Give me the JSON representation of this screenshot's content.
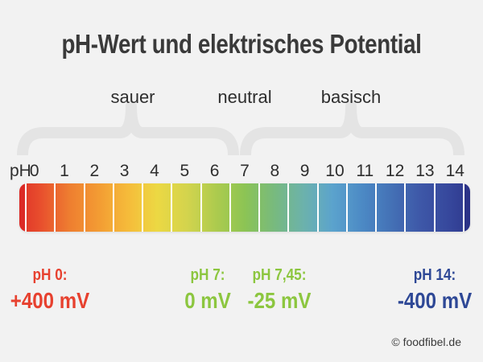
{
  "title": {
    "text": "pH-Wert und elektrisches Potential",
    "color": "#3a3a3a"
  },
  "regions": [
    {
      "label": "sauer"
    },
    {
      "label": "neutral"
    },
    {
      "label": "basisch"
    }
  ],
  "scale": {
    "axis_label": "pH",
    "ticks": [
      "0",
      "1",
      "2",
      "3",
      "4",
      "5",
      "6",
      "7",
      "8",
      "9",
      "10",
      "11",
      "12",
      "13",
      "14"
    ],
    "bar": {
      "cap_left_color": "#dc2a26",
      "cap_right_color": "#2b3287",
      "segment_colors": [
        "#e84e2d",
        "#ee7e30",
        "#f39c33",
        "#f5bb3a",
        "#ecd843",
        "#d4d44d",
        "#adcb4e",
        "#8cc454",
        "#78ba7d",
        "#6cb2ab",
        "#5ba3cd",
        "#4c8ac5",
        "#4472b6",
        "#3e58a8",
        "#36479c"
      ]
    }
  },
  "annotations": [
    {
      "label": "pH 0:",
      "value": "+400 mV",
      "color": "#e7412f"
    },
    {
      "label": "pH 7:",
      "value": "0 mV",
      "color": "#8cc63f"
    },
    {
      "label": "pH 7,45:",
      "value": "-25 mV",
      "color": "#8cc63f"
    },
    {
      "label": "pH 14:",
      "value": "-400 mV",
      "color": "#2e4896"
    }
  ],
  "footer": {
    "copyright": "© foodfibel.de"
  },
  "palette": {
    "background": "#f2f2f2",
    "text": "#2e2e2e",
    "brace": "#e4e4e4"
  }
}
